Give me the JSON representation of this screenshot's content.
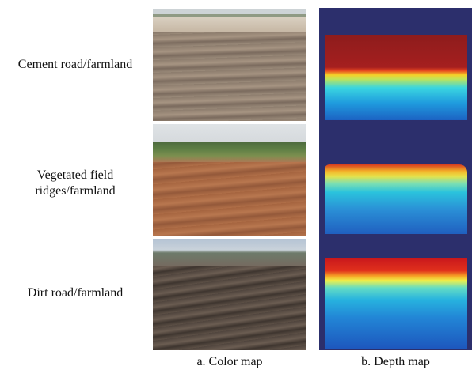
{
  "rows": [
    {
      "label": [
        "Cement road/farmland"
      ]
    },
    {
      "label": [
        "Vegetated field",
        "ridges/farmland"
      ]
    },
    {
      "label": [
        "Dirt road/farmland"
      ]
    }
  ],
  "captions": {
    "color": "a. Color map",
    "depth": "b. Depth map"
  }
}
